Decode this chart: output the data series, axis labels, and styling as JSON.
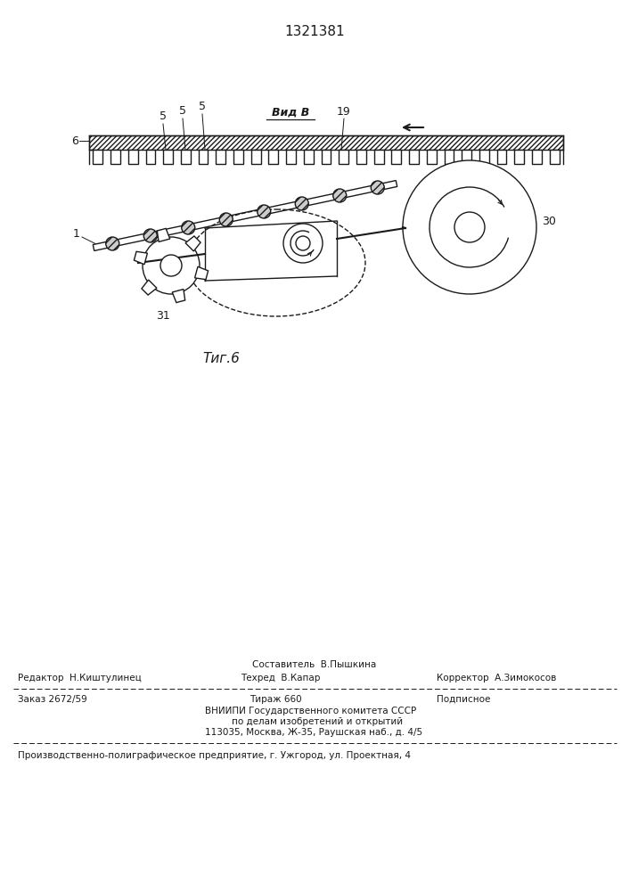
{
  "patent_number": "1321381",
  "fig_label": "τиг.6",
  "view_label": "Вид В",
  "bg_color": "#ffffff",
  "line_color": "#1a1a1a",
  "footer_sestavitel": "Составитель  В.Пышкина",
  "footer_redaktor": "Редактор  Н.Киштулинец",
  "footer_tehred": "Техред  В.Капар",
  "footer_korrektor": "Корректор  А.Зимокосов",
  "footer_order": "Заказ 2672/59",
  "footer_tirazh": "Тираж 660",
  "footer_podp": "Подписное",
  "footer_vnipi": "ВНИИПИ Государственного комитета СССР",
  "footer_dela": "по делам изобретений и открытий",
  "footer_address": "113035, Москва, Ж-35, Раушская наб., д. 4/5",
  "footer_bottom": "Производственно-полиграфическое предприятие, г. Ужгород, ул. Проектная, 4"
}
